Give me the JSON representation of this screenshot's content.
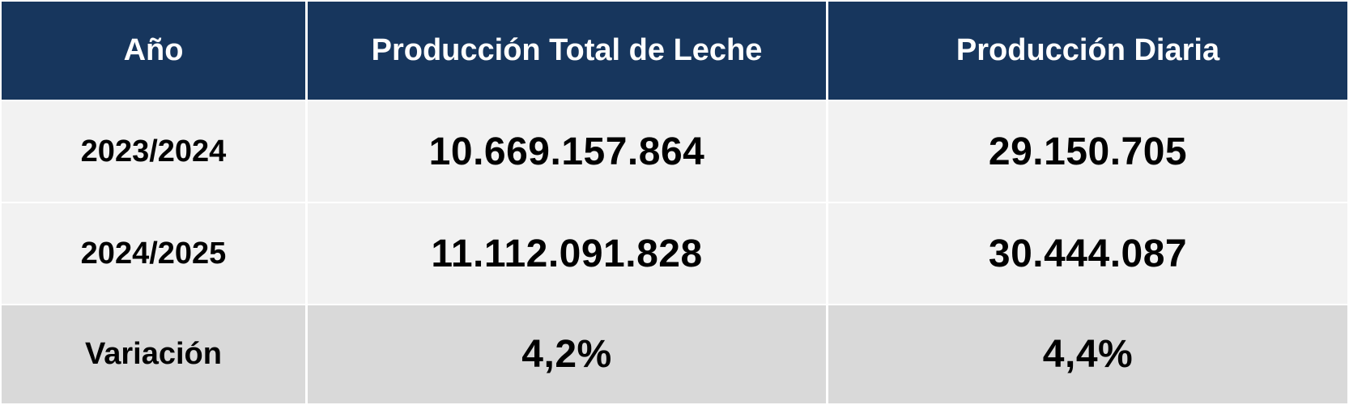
{
  "chart_data": {
    "type": "table",
    "columns": [
      "Año",
      "Producción Total de Leche",
      "Producción Diaria"
    ],
    "rows": [
      [
        "2023/2024",
        "10.669.157.864",
        "29.150.705"
      ],
      [
        "2024/2025",
        "11.112.091.828",
        "30.444.087"
      ],
      [
        "Variación",
        "4,2%",
        "4,4%"
      ]
    ]
  },
  "colors": {
    "header_bg": "#17365d",
    "header_text": "#ffffff",
    "row_bg": "#f2f2f2",
    "variation_row_bg": "#d9d9d9",
    "text": "#000000"
  }
}
